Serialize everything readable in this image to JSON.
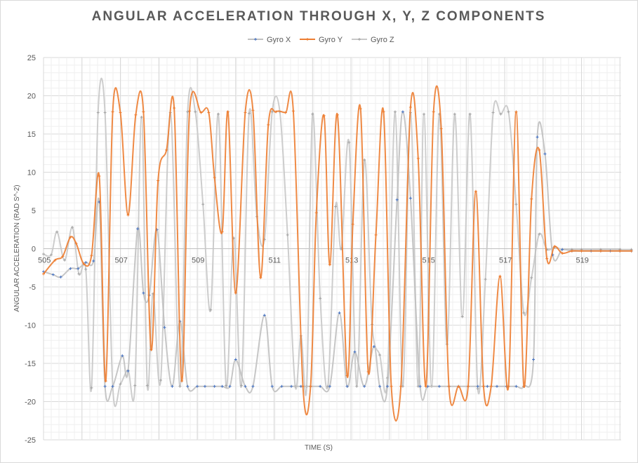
{
  "chart_data": {
    "type": "line",
    "title": "ANGULAR ACCELERATION THROUGH X, Y, Z COMPONENTS",
    "xlabel": "TIME (S)",
    "ylabel": "ANGULAR ACCELERATION (RAD S^-2)",
    "xlim": [
      505,
      520.3
    ],
    "ylim": [
      -25,
      25
    ],
    "y_ticks": [
      25,
      20,
      15,
      10,
      5,
      0,
      -5,
      -10,
      -15,
      -20,
      -25
    ],
    "x_ticks": [
      505,
      507,
      509,
      511,
      513,
      515,
      517,
      519
    ],
    "grid": true,
    "legend": "top-center",
    "colors": {
      "Gyro X": "#4472c4",
      "Gyro Y": "#ed7d31",
      "Gyro Z": "#a5a5a5"
    },
    "series": [
      {
        "name": "Gyro X",
        "color": "#4472c4",
        "line_color": "#c0c0c0",
        "points": [
          [
            505.0,
            -3.0
          ],
          [
            505.25,
            -3.4
          ],
          [
            505.45,
            -3.7
          ],
          [
            505.7,
            -2.6
          ],
          [
            505.9,
            -2.6
          ],
          [
            506.1,
            -1.8
          ],
          [
            506.3,
            -1.6
          ],
          [
            506.45,
            6.1
          ],
          [
            506.6,
            -18.0
          ],
          [
            506.8,
            -18.0
          ],
          [
            507.05,
            -14.0
          ],
          [
            507.2,
            -16.0
          ],
          [
            507.45,
            2.6
          ],
          [
            507.6,
            -5.8
          ],
          [
            507.75,
            -6.1
          ],
          [
            507.95,
            2.5
          ],
          [
            508.15,
            -10.3
          ],
          [
            508.35,
            -18.0
          ],
          [
            508.55,
            -9.5
          ],
          [
            508.75,
            -18.0
          ],
          [
            509.0,
            -18.0
          ],
          [
            509.2,
            -18.0
          ],
          [
            509.45,
            -18.0
          ],
          [
            509.65,
            -18.0
          ],
          [
            509.85,
            -18.0
          ],
          [
            510.0,
            -14.5
          ],
          [
            510.25,
            -18.0
          ],
          [
            510.45,
            -18.0
          ],
          [
            510.75,
            -8.7
          ],
          [
            510.95,
            -18.0
          ],
          [
            511.2,
            -18.0
          ],
          [
            511.45,
            -18.0
          ],
          [
            511.7,
            -18.0
          ],
          [
            511.95,
            -18.0
          ],
          [
            512.2,
            -18.0
          ],
          [
            512.45,
            -18.0
          ],
          [
            512.7,
            -8.4
          ],
          [
            512.9,
            -18.0
          ],
          [
            513.1,
            -13.5
          ],
          [
            513.35,
            -18.0
          ],
          [
            513.6,
            -12.8
          ],
          [
            513.75,
            -18.0
          ],
          [
            513.95,
            -18.0
          ],
          [
            514.2,
            6.4
          ],
          [
            514.35,
            17.9
          ],
          [
            514.55,
            6.6
          ],
          [
            514.8,
            -18.0
          ],
          [
            515.0,
            -18.0
          ],
          [
            515.3,
            -18.0
          ],
          [
            515.55,
            -18.0
          ],
          [
            515.8,
            -18.0
          ],
          [
            516.05,
            -18.0
          ],
          [
            516.3,
            -18.0
          ],
          [
            516.55,
            -18.0
          ],
          [
            516.8,
            -18.0
          ],
          [
            517.05,
            -18.0
          ],
          [
            517.3,
            -18.0
          ],
          [
            517.5,
            -18.0
          ],
          [
            517.75,
            -14.5
          ],
          [
            517.85,
            14.6
          ],
          [
            518.05,
            12.4
          ],
          [
            518.25,
            -0.8
          ],
          [
            518.5,
            -0.1
          ],
          [
            518.75,
            -0.3
          ],
          [
            519.0,
            -0.3
          ],
          [
            519.25,
            -0.3
          ],
          [
            519.5,
            -0.3
          ],
          [
            519.75,
            -0.3
          ],
          [
            520.0,
            -0.3
          ],
          [
            520.3,
            -0.3
          ]
        ]
      },
      {
        "name": "Gyro Y",
        "color": "#ed7d31",
        "line_color": "#ed7d31",
        "points": [
          [
            505.0,
            -3.3
          ],
          [
            505.3,
            -1.5
          ],
          [
            505.5,
            -1.0
          ],
          [
            505.7,
            1.5
          ],
          [
            505.85,
            0.7
          ],
          [
            506.05,
            -2.0
          ],
          [
            506.25,
            -0.9
          ],
          [
            506.45,
            9.5
          ],
          [
            506.62,
            -17.3
          ],
          [
            506.8,
            17.9
          ],
          [
            507.0,
            17.8
          ],
          [
            507.2,
            4.4
          ],
          [
            507.4,
            17.5
          ],
          [
            507.6,
            17.9
          ],
          [
            507.8,
            -13.2
          ],
          [
            507.98,
            8.9
          ],
          [
            508.2,
            12.9
          ],
          [
            508.4,
            18.4
          ],
          [
            508.6,
            -17.3
          ],
          [
            508.8,
            18.0
          ],
          [
            509.1,
            17.8
          ],
          [
            509.3,
            17.8
          ],
          [
            509.45,
            9.3
          ],
          [
            509.65,
            2.2
          ],
          [
            509.8,
            17.9
          ],
          [
            510.0,
            -5.8
          ],
          [
            510.25,
            17.8
          ],
          [
            510.45,
            18.1
          ],
          [
            510.65,
            -3.8
          ],
          [
            510.85,
            16.2
          ],
          [
            511.05,
            17.9
          ],
          [
            511.3,
            17.8
          ],
          [
            511.5,
            18.0
          ],
          [
            511.75,
            -18.0
          ],
          [
            511.95,
            -18.0
          ],
          [
            512.1,
            4.7
          ],
          [
            512.3,
            17.4
          ],
          [
            512.45,
            -2.1
          ],
          [
            512.65,
            17.5
          ],
          [
            512.9,
            -16.6
          ],
          [
            513.05,
            3.2
          ],
          [
            513.25,
            18.3
          ],
          [
            513.45,
            -16.1
          ],
          [
            513.65,
            1.8
          ],
          [
            513.85,
            17.9
          ],
          [
            514.05,
            -18.0
          ],
          [
            514.3,
            -18.0
          ],
          [
            514.55,
            18.5
          ],
          [
            514.75,
            11.8
          ],
          [
            514.95,
            -18.0
          ],
          [
            515.15,
            17.9
          ],
          [
            515.35,
            15.7
          ],
          [
            515.55,
            -18.0
          ],
          [
            515.8,
            -18.0
          ],
          [
            516.05,
            -18.0
          ],
          [
            516.25,
            7.5
          ],
          [
            516.45,
            -18.0
          ],
          [
            516.65,
            -18.0
          ],
          [
            516.88,
            -3.6
          ],
          [
            517.1,
            -18.0
          ],
          [
            517.3,
            17.9
          ],
          [
            517.5,
            -18.0
          ],
          [
            517.7,
            6.5
          ],
          [
            517.9,
            12.9
          ],
          [
            518.1,
            -1.3
          ],
          [
            518.3,
            0.3
          ],
          [
            518.5,
            -0.6
          ],
          [
            518.75,
            -0.3
          ],
          [
            519.0,
            -0.3
          ],
          [
            519.5,
            -0.3
          ],
          [
            520.0,
            -0.3
          ],
          [
            520.3,
            -0.3
          ]
        ]
      },
      {
        "name": "Gyro Z",
        "color": "#a5a5a5",
        "line_color": "#c8c8c8",
        "points": [
          [
            505.0,
            -0.7
          ],
          [
            505.2,
            -0.8
          ],
          [
            505.35,
            2.2
          ],
          [
            505.55,
            -1.5
          ],
          [
            505.75,
            2.8
          ],
          [
            505.92,
            -3.3
          ],
          [
            506.1,
            -2.7
          ],
          [
            506.25,
            -18.2
          ],
          [
            506.42,
            17.8
          ],
          [
            506.6,
            17.8
          ],
          [
            506.8,
            -18.0
          ],
          [
            507.0,
            -17.7
          ],
          [
            507.2,
            -15.9
          ],
          [
            507.38,
            -17.9
          ],
          [
            507.55,
            17.2
          ],
          [
            507.7,
            -17.9
          ],
          [
            507.85,
            -5.9
          ],
          [
            508.05,
            -17.2
          ],
          [
            508.3,
            17.8
          ],
          [
            508.55,
            -18.0
          ],
          [
            508.75,
            17.9
          ],
          [
            508.95,
            17.9
          ],
          [
            509.15,
            5.8
          ],
          [
            509.35,
            -8.0
          ],
          [
            509.55,
            17.6
          ],
          [
            509.75,
            -17.9
          ],
          [
            509.95,
            1.4
          ],
          [
            510.15,
            -17.9
          ],
          [
            510.35,
            17.7
          ],
          [
            510.55,
            4.2
          ],
          [
            510.75,
            1.2
          ],
          [
            510.95,
            17.9
          ],
          [
            511.15,
            17.9
          ],
          [
            511.35,
            1.8
          ],
          [
            511.55,
            -18.0
          ],
          [
            511.7,
            -11.4
          ],
          [
            511.85,
            -18.0
          ],
          [
            512.0,
            17.6
          ],
          [
            512.2,
            -6.5
          ],
          [
            512.4,
            -18.0
          ],
          [
            512.6,
            5.5
          ],
          [
            512.75,
            0.0
          ],
          [
            512.95,
            13.9
          ],
          [
            513.15,
            -18.0
          ],
          [
            513.35,
            11.6
          ],
          [
            513.55,
            -9.9
          ],
          [
            513.75,
            -13.9
          ],
          [
            513.95,
            -16.9
          ],
          [
            514.15,
            17.9
          ],
          [
            514.35,
            -18.0
          ],
          [
            514.55,
            17.8
          ],
          [
            514.75,
            -18.0
          ],
          [
            514.9,
            17.6
          ],
          [
            515.1,
            -18.0
          ],
          [
            515.3,
            17.6
          ],
          [
            515.5,
            -12.5
          ],
          [
            515.7,
            17.6
          ],
          [
            515.9,
            -8.9
          ],
          [
            516.1,
            17.6
          ],
          [
            516.3,
            -18.3
          ],
          [
            516.5,
            -4.0
          ],
          [
            516.7,
            17.8
          ],
          [
            516.9,
            17.6
          ],
          [
            517.1,
            17.9
          ],
          [
            517.3,
            5.8
          ],
          [
            517.5,
            -8.4
          ],
          [
            517.7,
            -3.8
          ],
          [
            517.9,
            1.9
          ],
          [
            518.1,
            -0.1
          ],
          [
            518.3,
            0.2
          ],
          [
            518.5,
            -0.1
          ],
          [
            518.75,
            -0.1
          ],
          [
            519.0,
            -0.1
          ],
          [
            519.5,
            -0.1
          ],
          [
            520.0,
            -0.1
          ],
          [
            520.3,
            -0.1
          ]
        ]
      }
    ]
  }
}
